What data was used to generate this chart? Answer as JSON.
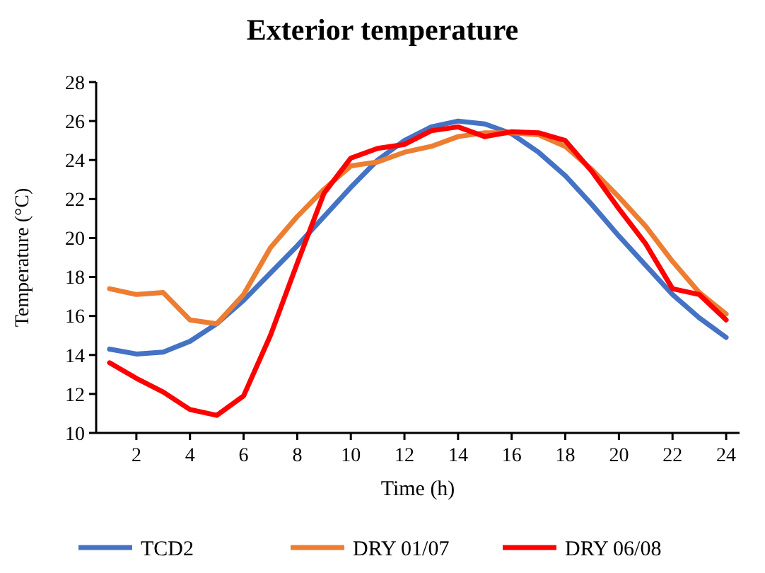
{
  "chart_data": {
    "type": "line",
    "title": "Exterior temperature",
    "xlabel": "Time (h)",
    "ylabel": "Temperature (°C)",
    "x": [
      1,
      2,
      3,
      4,
      5,
      6,
      7,
      8,
      9,
      10,
      11,
      12,
      13,
      14,
      15,
      16,
      17,
      18,
      19,
      20,
      21,
      22,
      23,
      24
    ],
    "xlim": [
      0.5,
      24.5
    ],
    "xticks": [
      2,
      4,
      6,
      8,
      10,
      12,
      14,
      16,
      18,
      20,
      22,
      24
    ],
    "ylim": [
      10,
      28
    ],
    "yticks": [
      10,
      12,
      14,
      16,
      18,
      20,
      22,
      24,
      26,
      28
    ],
    "grid": false,
    "legend": "bottom",
    "marker": "none",
    "line_style": "solid",
    "series": [
      {
        "name": "TCD2",
        "color": "#4472c4",
        "values": [
          14.3,
          14.05,
          14.15,
          14.7,
          15.6,
          16.8,
          18.2,
          19.6,
          21.1,
          22.6,
          24.0,
          25.0,
          25.7,
          26.0,
          25.85,
          25.35,
          24.4,
          23.2,
          21.7,
          20.1,
          18.6,
          17.1,
          15.9,
          14.9
        ]
      },
      {
        "name": "DRY 01/07",
        "color": "#ed7d31",
        "values": [
          17.4,
          17.1,
          17.2,
          15.8,
          15.6,
          17.1,
          19.5,
          21.1,
          22.5,
          23.7,
          23.9,
          24.4,
          24.7,
          25.2,
          25.4,
          25.4,
          25.3,
          24.7,
          23.5,
          22.1,
          20.6,
          18.8,
          17.2,
          16.1
        ]
      },
      {
        "name": "DRY 06/08",
        "color": "#ff0000",
        "values": [
          13.6,
          12.8,
          12.1,
          11.2,
          10.9,
          11.9,
          15.0,
          18.7,
          22.3,
          24.1,
          24.6,
          24.8,
          25.5,
          25.7,
          25.2,
          25.45,
          25.4,
          25.0,
          23.4,
          21.5,
          19.7,
          17.4,
          17.1,
          15.8
        ]
      }
    ]
  }
}
